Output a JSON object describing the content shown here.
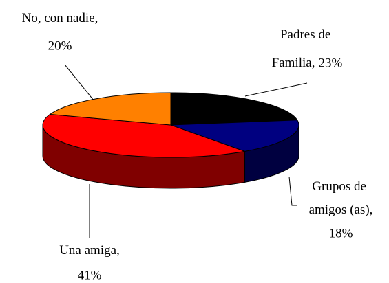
{
  "chart_data": {
    "type": "pie3d",
    "categories": [
      "Padres de Familia,",
      "Grupos de amigos (as),",
      "Una amiga,",
      "No, con nadie,"
    ],
    "values": [
      23,
      18,
      41,
      20
    ],
    "value_labels": [
      "23%",
      "18%",
      "41%",
      "20%"
    ],
    "colors": [
      "#000000",
      "#000080",
      "#ff0000",
      "#ff8000"
    ]
  }
}
